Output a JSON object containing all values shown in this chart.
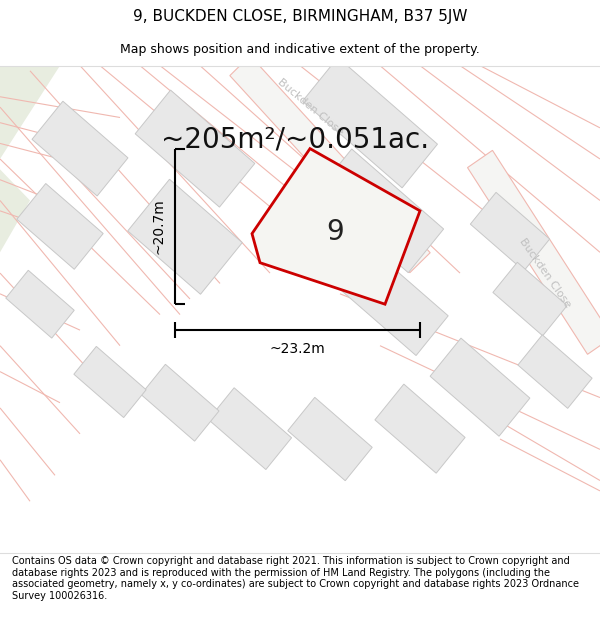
{
  "title": "9, BUCKDEN CLOSE, BIRMINGHAM, B37 5JW",
  "subtitle": "Map shows position and indicative extent of the property.",
  "area_text": "~205m²/~0.051ac.",
  "width_label": "~23.2m",
  "height_label": "~20.7m",
  "plot_number": "9",
  "footer_text": "Contains OS data © Crown copyright and database right 2021. This information is subject to Crown copyright and database rights 2023 and is reproduced with the permission of HM Land Registry. The polygons (including the associated geometry, namely x, y co-ordinates) are subject to Crown copyright and database rights 2023 Ordnance Survey 100026316.",
  "map_bg": "#f7f7f5",
  "road_color": "#f0b8b0",
  "building_color": "#e8e8e8",
  "building_edge": "#c8c8c8",
  "plot_outline_color": "#cc0000",
  "road_label_color": "#c0c0c0",
  "title_fontsize": 11,
  "subtitle_fontsize": 9,
  "area_fontsize": 20,
  "label_fontsize": 10,
  "footer_fontsize": 7.0,
  "green_color": "#e8ede0"
}
